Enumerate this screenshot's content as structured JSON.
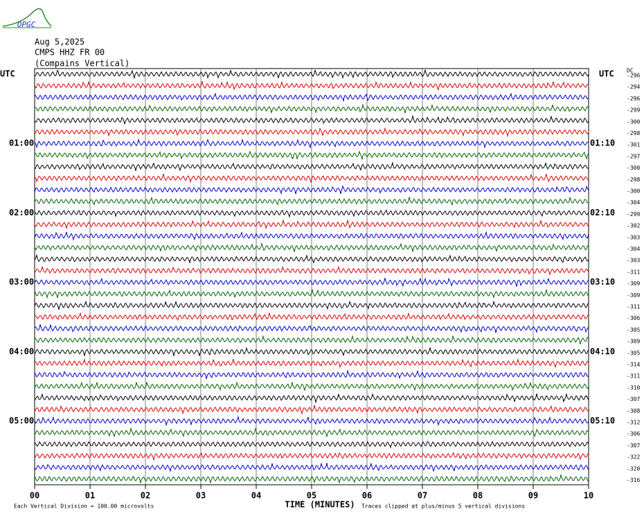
{
  "chart_data": {
    "type": "helicorder",
    "logo": "OPGC",
    "date": "Aug 5,2025",
    "station": "CMPS HHZ FR 00",
    "station_name": "(Compains Vertical)",
    "left_header": "UTC",
    "right_header": "UTC",
    "dc_header": "DC",
    "x_label": "TIME (MINUTES)",
    "scale_note": "Each Vertical Division =  100.00 microvolts",
    "clip_note": "Traces clipped at plus/minus 5 vertical divisions",
    "xlim": [
      0,
      10
    ],
    "xticks": [
      {
        "value": 0,
        "label": "00"
      },
      {
        "value": 1,
        "label": "01"
      },
      {
        "value": 2,
        "label": "02"
      },
      {
        "value": 3,
        "label": "03"
      },
      {
        "value": 4,
        "label": "04"
      },
      {
        "value": 5,
        "label": "05"
      },
      {
        "value": 6,
        "label": "06"
      },
      {
        "value": 7,
        "label": "07"
      },
      {
        "value": 8,
        "label": "08"
      },
      {
        "value": 9,
        "label": "09"
      },
      {
        "value": 10,
        "label": "10"
      }
    ],
    "grid": true,
    "colors": [
      "#000000",
      "#e00000",
      "#0000d0",
      "#006400"
    ],
    "left_labels": [
      null,
      null,
      null,
      null,
      null,
      null,
      "01:00",
      null,
      null,
      null,
      null,
      null,
      "02:00",
      null,
      null,
      null,
      null,
      null,
      "03:00",
      null,
      null,
      null,
      null,
      null,
      "04:00",
      null,
      null,
      null,
      null,
      null,
      "05:00",
      null,
      null,
      null,
      null,
      null
    ],
    "right_labels": [
      null,
      null,
      null,
      null,
      null,
      null,
      "01:10",
      null,
      null,
      null,
      null,
      null,
      "02:10",
      null,
      null,
      null,
      null,
      null,
      "03:10",
      null,
      null,
      null,
      null,
      null,
      "04:10",
      null,
      null,
      null,
      null,
      null,
      "05:10",
      null,
      null,
      null,
      null,
      null
    ],
    "dc": [
      -296,
      -294,
      -296,
      -299,
      -300,
      -298,
      -301,
      -297,
      -300,
      -298,
      -300,
      -304,
      -299,
      -302,
      -303,
      -304,
      -303,
      -311,
      -309,
      -309,
      -311,
      -306,
      -305,
      -309,
      -305,
      -314,
      -311,
      -310,
      -307,
      -308,
      -312,
      -306,
      -307,
      -322,
      -320,
      -316
    ]
  }
}
